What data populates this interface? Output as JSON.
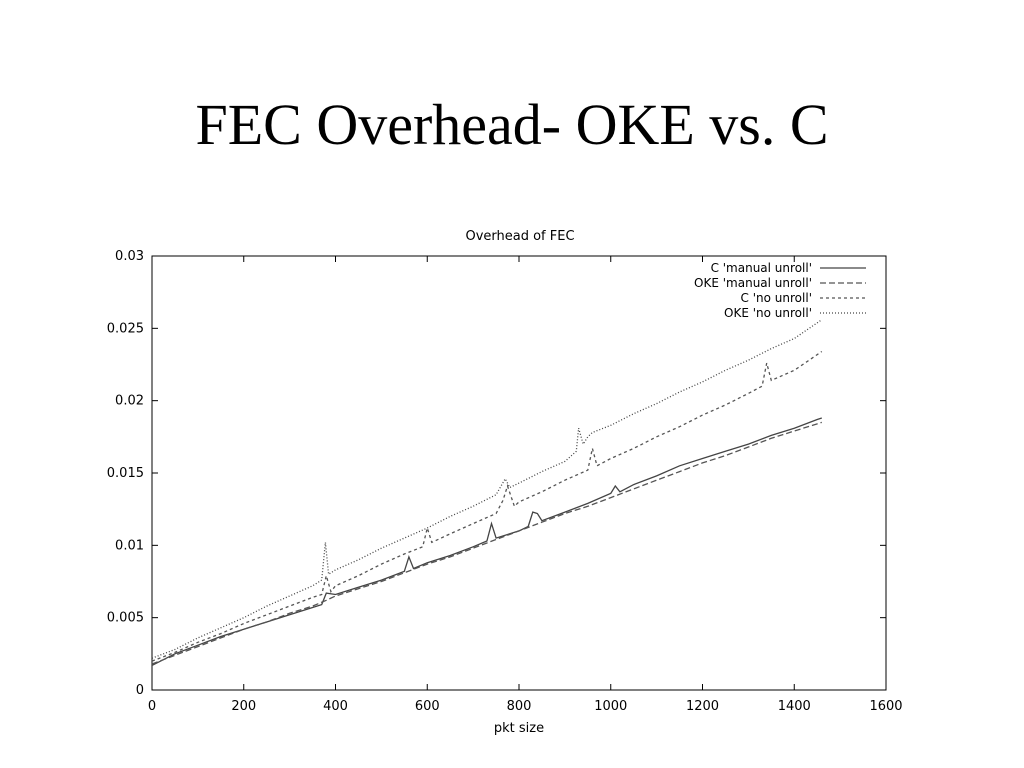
{
  "slide": {
    "title": "FEC Overhead- OKE vs. C"
  },
  "chart_data": {
    "type": "line",
    "title": "Overhead of FEC",
    "xlabel": "pkt size",
    "ylabel": "",
    "xlim": [
      0,
      1600
    ],
    "ylim": [
      0,
      0.03
    ],
    "xticks": [
      0,
      200,
      400,
      600,
      800,
      1000,
      1200,
      1400,
      1600
    ],
    "xtick_labels": [
      "0",
      "200",
      "400",
      "600",
      "800",
      "1000",
      "1200",
      "1400",
      "1600"
    ],
    "yticks": [
      0,
      0.005,
      0.01,
      0.015,
      0.02,
      0.025,
      0.03
    ],
    "ytick_labels": [
      "0",
      "0.005",
      "0.01",
      "0.015",
      "0.02",
      "0.025",
      "0.03"
    ],
    "grid": false,
    "legend_position": "top-right",
    "series": [
      {
        "name": "C 'manual unroll'",
        "style": "solid",
        "x": [
          0,
          50,
          100,
          150,
          200,
          250,
          300,
          350,
          370,
          380,
          400,
          450,
          500,
          550,
          560,
          570,
          600,
          650,
          700,
          730,
          740,
          750,
          800,
          820,
          830,
          840,
          850,
          900,
          950,
          1000,
          1010,
          1020,
          1050,
          1100,
          1150,
          1200,
          1250,
          1300,
          1350,
          1400,
          1450,
          1460
        ],
        "y": [
          0.0017,
          0.0025,
          0.0031,
          0.0037,
          0.0042,
          0.0047,
          0.0052,
          0.0057,
          0.0059,
          0.0067,
          0.0066,
          0.0071,
          0.0076,
          0.0082,
          0.0092,
          0.0084,
          0.0088,
          0.0093,
          0.0099,
          0.0103,
          0.0115,
          0.0105,
          0.011,
          0.0113,
          0.0123,
          0.0122,
          0.0117,
          0.0123,
          0.0129,
          0.0136,
          0.0141,
          0.0137,
          0.0142,
          0.0148,
          0.0155,
          0.016,
          0.0165,
          0.017,
          0.0176,
          0.0181,
          0.0187,
          0.0188
        ]
      },
      {
        "name": "OKE 'manual unroll'",
        "style": "dashed",
        "x": [
          0,
          50,
          100,
          150,
          200,
          250,
          300,
          350,
          380,
          400,
          450,
          500,
          550,
          600,
          650,
          700,
          750,
          800,
          850,
          900,
          950,
          1000,
          1050,
          1100,
          1150,
          1200,
          1250,
          1300,
          1350,
          1400,
          1460
        ],
        "y": [
          0.0018,
          0.0024,
          0.003,
          0.0036,
          0.0042,
          0.0047,
          0.0053,
          0.0058,
          0.0062,
          0.0065,
          0.007,
          0.0075,
          0.0081,
          0.0087,
          0.0092,
          0.0098,
          0.0104,
          0.011,
          0.0116,
          0.0122,
          0.0127,
          0.0133,
          0.0139,
          0.0145,
          0.0151,
          0.0157,
          0.0162,
          0.0168,
          0.0174,
          0.0179,
          0.0185
        ]
      },
      {
        "name": "C 'no unroll'",
        "style": "short-dashed",
        "x": [
          0,
          50,
          100,
          150,
          200,
          250,
          300,
          350,
          370,
          380,
          390,
          400,
          450,
          500,
          550,
          590,
          600,
          610,
          650,
          700,
          750,
          765,
          775,
          790,
          800,
          850,
          900,
          950,
          960,
          970,
          1000,
          1050,
          1100,
          1150,
          1200,
          1250,
          1300,
          1330,
          1340,
          1350,
          1400,
          1460
        ],
        "y": [
          0.002,
          0.0026,
          0.0033,
          0.0039,
          0.0046,
          0.0052,
          0.0058,
          0.0064,
          0.0066,
          0.0079,
          0.0068,
          0.0072,
          0.0079,
          0.0087,
          0.0094,
          0.0099,
          0.0112,
          0.0102,
          0.0108,
          0.0115,
          0.0122,
          0.0131,
          0.0141,
          0.0127,
          0.013,
          0.0137,
          0.0145,
          0.0152,
          0.0167,
          0.0155,
          0.016,
          0.0167,
          0.0175,
          0.0182,
          0.019,
          0.0197,
          0.0205,
          0.021,
          0.0226,
          0.0214,
          0.0221,
          0.0234
        ]
      },
      {
        "name": "OKE 'no unroll'",
        "style": "dotted",
        "x": [
          0,
          50,
          100,
          150,
          200,
          250,
          300,
          350,
          370,
          378,
          385,
          400,
          450,
          500,
          550,
          600,
          650,
          700,
          750,
          770,
          780,
          800,
          850,
          900,
          925,
          930,
          940,
          950,
          960,
          1000,
          1050,
          1100,
          1150,
          1200,
          1250,
          1300,
          1350,
          1400,
          1460
        ],
        "y": [
          0.0022,
          0.0028,
          0.0036,
          0.0043,
          0.005,
          0.0058,
          0.0065,
          0.0072,
          0.0076,
          0.0102,
          0.008,
          0.0083,
          0.009,
          0.0098,
          0.0105,
          0.0112,
          0.012,
          0.0127,
          0.0135,
          0.0146,
          0.014,
          0.0143,
          0.0151,
          0.0158,
          0.0165,
          0.0181,
          0.017,
          0.0175,
          0.0178,
          0.0183,
          0.0191,
          0.0198,
          0.0206,
          0.0213,
          0.0221,
          0.0228,
          0.0236,
          0.0243,
          0.0256
        ]
      }
    ]
  }
}
